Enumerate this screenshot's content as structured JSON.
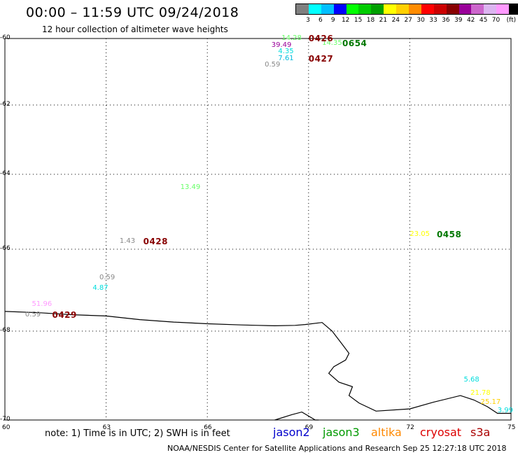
{
  "header": {
    "title": "00:00 – 11:59 UTC 09/24/2018",
    "subtitle": "12 hour collection of altimeter wave heights"
  },
  "scale": {
    "colors": [
      "#7f7f7f",
      "#00ffff",
      "#00bfff",
      "#0000ff",
      "#00ff00",
      "#00cc00",
      "#00a000",
      "#ffff00",
      "#ffd000",
      "#ff8c00",
      "#ff0000",
      "#cc0000",
      "#880000",
      "#990099",
      "#cc66cc",
      "#dcb4f0",
      "#ff99ff",
      "#000000"
    ],
    "labels": [
      "3",
      "6",
      "9",
      "12",
      "15",
      "18",
      "21",
      "24",
      "27",
      "30",
      "33",
      "36",
      "39",
      "42",
      "45",
      "70",
      "(ft)"
    ]
  },
  "axes": {
    "x_ticks": [
      "60",
      "63",
      "66",
      "69",
      "72",
      "75"
    ],
    "y_ticks": [
      "-60",
      "-62",
      "-64",
      "-66",
      "-68",
      "-70"
    ]
  },
  "wave_heights": [
    {
      "text": "14.28",
      "color": "#66ff66",
      "lon": 68.2,
      "lat": -60.0
    },
    {
      "text": "39.49",
      "color": "#990099",
      "lon": 67.9,
      "lat": -60.2
    },
    {
      "text": "14.35",
      "color": "#66ff66",
      "lon": 69.4,
      "lat": -60.15
    },
    {
      "text": "4.35",
      "color": "#00dddd",
      "lon": 68.1,
      "lat": -60.4
    },
    {
      "text": "7.61",
      "color": "#00bbdd",
      "lon": 68.1,
      "lat": -60.6
    },
    {
      "text": "0.59",
      "color": "#888888",
      "lon": 67.7,
      "lat": -60.8
    },
    {
      "text": "13.49",
      "color": "#66ff66",
      "lon": 65.2,
      "lat": -64.35
    },
    {
      "text": "1.43",
      "color": "#888888",
      "lon": 63.4,
      "lat": -65.8
    },
    {
      "text": "0.59",
      "color": "#888888",
      "lon": 62.8,
      "lat": -66.7
    },
    {
      "text": "4.87",
      "color": "#00dddd",
      "lon": 62.6,
      "lat": -66.95
    },
    {
      "text": "51.96",
      "color": "#ff99ff",
      "lon": 60.8,
      "lat": -67.35
    },
    {
      "text": "0.59",
      "color": "#888888",
      "lon": 60.6,
      "lat": -67.6
    },
    {
      "text": "23.05",
      "color": "#ffff00",
      "lon": 72.0,
      "lat": -65.6
    },
    {
      "text": "5.68",
      "color": "#00dddd",
      "lon": 73.6,
      "lat": -69.1
    },
    {
      "text": "21.78",
      "color": "#ffff00",
      "lon": 73.8,
      "lat": -69.4
    },
    {
      "text": "25.17",
      "color": "#ffd000",
      "lon": 74.1,
      "lat": -69.6
    },
    {
      "text": "3.99",
      "color": "#00dddd",
      "lon": 74.6,
      "lat": -69.8
    }
  ],
  "passes": [
    {
      "text": "0426",
      "color": "#880000",
      "lon": 69.0,
      "lat": -60.0
    },
    {
      "text": "0654",
      "color": "#007700",
      "lon": 70.0,
      "lat": -60.15
    },
    {
      "text": "0427",
      "color": "#880000",
      "lon": 69.0,
      "lat": -60.6
    },
    {
      "text": "0428",
      "color": "#880000",
      "lon": 64.1,
      "lat": -65.8
    },
    {
      "text": "0429",
      "color": "#880000",
      "lon": 61.4,
      "lat": -67.6
    },
    {
      "text": "0458",
      "color": "#007700",
      "lon": 72.8,
      "lat": -65.6
    }
  ],
  "coastline": [
    [
      60,
      -67.52
    ],
    [
      61,
      -67.55
    ],
    [
      62,
      -67.6
    ],
    [
      63,
      -67.63
    ],
    [
      64,
      -67.72
    ],
    [
      65,
      -67.78
    ],
    [
      66,
      -67.82
    ],
    [
      67,
      -67.85
    ],
    [
      67.5,
      -67.86
    ],
    [
      68,
      -67.87
    ],
    [
      68.6,
      -67.86
    ],
    [
      68.9,
      -67.84
    ],
    [
      69.4,
      -67.79
    ],
    [
      69.7,
      -68.0
    ],
    [
      70.0,
      -68.3
    ],
    [
      70.2,
      -68.5
    ],
    [
      70.1,
      -68.65
    ],
    [
      69.75,
      -68.8
    ],
    [
      69.6,
      -68.95
    ],
    [
      69.9,
      -69.15
    ],
    [
      70.3,
      -69.25
    ],
    [
      70.2,
      -69.45
    ],
    [
      70.5,
      -69.62
    ],
    [
      71.0,
      -69.8
    ],
    [
      72.0,
      -69.75
    ],
    [
      72.7,
      -69.6
    ],
    [
      73.5,
      -69.45
    ],
    [
      73.9,
      -69.55
    ],
    [
      74.3,
      -69.7
    ],
    [
      74.6,
      -69.85
    ],
    [
      75.0,
      -69.85
    ]
  ],
  "coast_lower": [
    [
      68.0,
      -70.15
    ],
    [
      68.5,
      -69.88
    ],
    [
      68.8,
      -69.82
    ],
    [
      69.2,
      -70.05
    ],
    [
      69.3,
      -70.1
    ]
  ],
  "note": "note: 1) Time is in UTC; 2) SWH is in feet",
  "missions": [
    {
      "name": "jason2",
      "color": "#0000cc"
    },
    {
      "name": "jason3",
      "color": "#009900"
    },
    {
      "name": "altika",
      "color": "#ff8800"
    },
    {
      "name": "cryosat",
      "color": "#dd0000"
    },
    {
      "name": "s3a",
      "color": "#aa0000"
    }
  ],
  "footer": "NOAA/NESDIS Center for Satellite Applications and Research   Sep 25 12:27:18 UTC 2018"
}
